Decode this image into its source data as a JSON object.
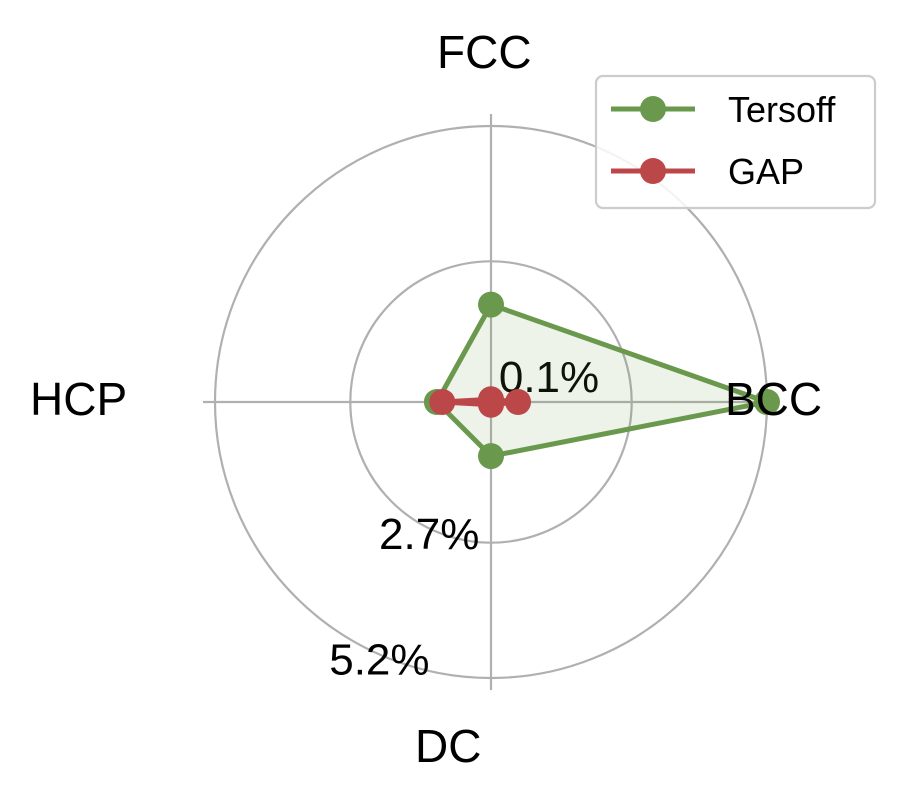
{
  "chart_data": {
    "type": "radar",
    "title": "",
    "categories": [
      "FCC",
      "BCC",
      "DC",
      "HCP"
    ],
    "r_ticks": [
      {
        "value": 0.1,
        "label": "0.1%"
      },
      {
        "value": 2.7,
        "label": "2.7%"
      },
      {
        "value": 5.2,
        "label": "5.2%"
      }
    ],
    "r_range": [
      0.1,
      5.2
    ],
    "grid": true,
    "legend_position": "top-right",
    "series": [
      {
        "name": "Tersoff",
        "color": "#6a994e",
        "fill": true,
        "values": [
          1.9,
          5.2,
          1.1,
          1.1
        ]
      },
      {
        "name": "GAP",
        "color": "#bc4749",
        "fill": false,
        "values": [
          0.15,
          0.6,
          0.15,
          1.0
        ]
      }
    ]
  }
}
